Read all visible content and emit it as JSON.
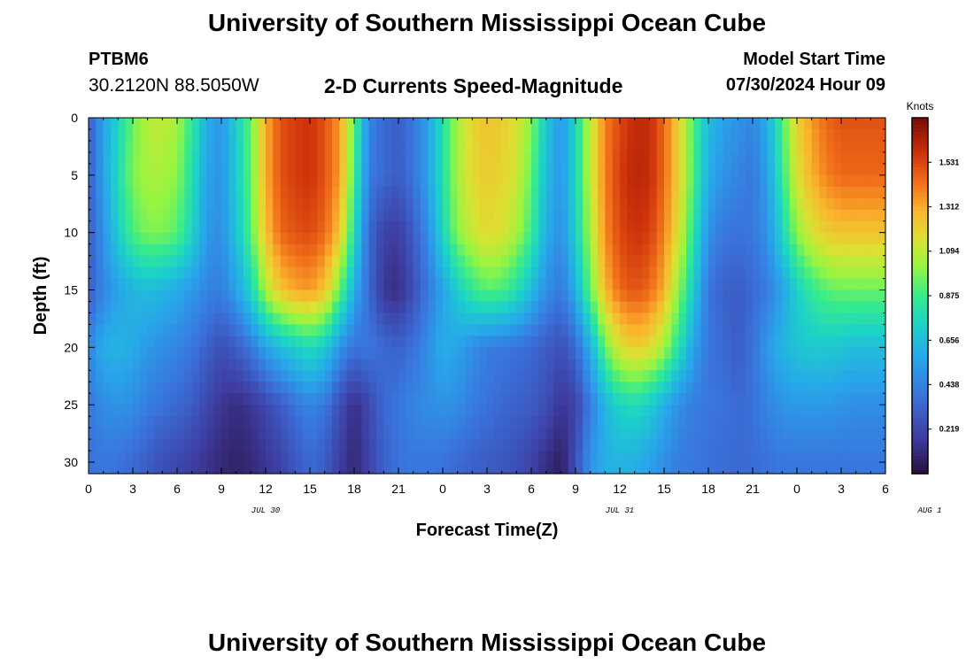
{
  "header": {
    "title": "University of Southern Mississippi Ocean Cube",
    "station": "PTBM6",
    "coordinates": "30.2120N  88.5050W",
    "product": "2-D Currents Speed-Magnitude",
    "model_start_label": "Model Start Time",
    "model_start_value": "07/30/2024 Hour 09"
  },
  "footer": {
    "title": "University of Southern Mississippi Ocean Cube"
  },
  "chart_data": {
    "type": "heatmap",
    "title": "2-D Currents Speed-Magnitude",
    "xlabel": "Forecast Time(Z)",
    "ylabel": "Depth (ft)",
    "x_tick_labels": [
      "0",
      "3",
      "6",
      "9",
      "12",
      "15",
      "18",
      "21",
      "0",
      "3",
      "6",
      "9",
      "12",
      "15",
      "18",
      "21",
      "0",
      "3",
      "6"
    ],
    "x_day_labels": [
      {
        "label": "JUL 30",
        "hour_index": 12
      },
      {
        "label": "JUL 31",
        "hour_index": 36
      },
      {
        "label": "AUG 1",
        "hour_index": 57
      }
    ],
    "x_range_hours": [
      0,
      54
    ],
    "y_tick_labels": [
      "0",
      "5",
      "10",
      "15",
      "20",
      "25",
      "30"
    ],
    "y_range_ft": [
      0,
      31
    ],
    "y_reversed": true,
    "colorbar": {
      "unit": "Knots",
      "range": [
        0,
        1.75
      ],
      "ticks": [
        "1.531",
        "1.312",
        "1.094",
        "0.875",
        "0.656",
        "0.438",
        "0.219"
      ],
      "tick_values": [
        1.531,
        1.312,
        1.094,
        0.875,
        0.656,
        0.438,
        0.219
      ]
    },
    "depths_ft": [
      0,
      5,
      10,
      15,
      20,
      25,
      30
    ],
    "times_hours": [
      0,
      1,
      2,
      3,
      4,
      5,
      6,
      7,
      8,
      9,
      10,
      11,
      12,
      13,
      14,
      15,
      16,
      17,
      18,
      19,
      20,
      21,
      22,
      23,
      24,
      25,
      26,
      27,
      28,
      29,
      30,
      31,
      32,
      33,
      34,
      35,
      36,
      37,
      38,
      39,
      40,
      41,
      42,
      43,
      44,
      45,
      46,
      47,
      48,
      49,
      50,
      51,
      52,
      53,
      54
    ],
    "speed_knots": [
      [
        0.3,
        0.55,
        0.75,
        0.95,
        1.08,
        1.1,
        1.05,
        0.85,
        0.6,
        0.5,
        0.72,
        0.95,
        1.3,
        1.5,
        1.55,
        1.58,
        1.5,
        1.35,
        0.95,
        0.45,
        0.35,
        0.3,
        0.4,
        0.55,
        0.8,
        1.05,
        1.2,
        1.25,
        1.22,
        1.15,
        1.0,
        0.7,
        0.5,
        0.75,
        1.1,
        1.4,
        1.52,
        1.6,
        1.6,
        1.45,
        1.2,
        0.9,
        0.65,
        0.55,
        0.5,
        0.45,
        0.6,
        0.9,
        1.2,
        1.35,
        1.45,
        1.5,
        1.5,
        1.5,
        1.5
      ],
      [
        0.3,
        0.55,
        0.78,
        0.98,
        1.05,
        1.05,
        1.0,
        0.8,
        0.55,
        0.5,
        0.7,
        0.95,
        1.3,
        1.5,
        1.55,
        1.58,
        1.5,
        1.35,
        0.9,
        0.42,
        0.35,
        0.3,
        0.4,
        0.55,
        0.8,
        1.05,
        1.18,
        1.22,
        1.2,
        1.12,
        0.95,
        0.65,
        0.5,
        0.75,
        1.1,
        1.4,
        1.55,
        1.62,
        1.6,
        1.45,
        1.2,
        0.9,
        0.6,
        0.5,
        0.45,
        0.4,
        0.55,
        0.85,
        1.15,
        1.3,
        1.4,
        1.45,
        1.45,
        1.45,
        1.45
      ],
      [
        0.3,
        0.5,
        0.72,
        0.9,
        0.98,
        0.98,
        0.92,
        0.75,
        0.52,
        0.48,
        0.68,
        0.92,
        1.25,
        1.45,
        1.5,
        1.52,
        1.45,
        1.25,
        0.8,
        0.35,
        0.2,
        0.18,
        0.3,
        0.48,
        0.75,
        1.0,
        1.12,
        1.18,
        1.15,
        1.05,
        0.88,
        0.6,
        0.48,
        0.72,
        1.05,
        1.38,
        1.52,
        1.58,
        1.55,
        1.4,
        1.15,
        0.82,
        0.5,
        0.4,
        0.38,
        0.4,
        0.5,
        0.75,
        1.0,
        1.15,
        1.22,
        1.25,
        1.25,
        1.25,
        1.25
      ],
      [
        0.3,
        0.45,
        0.55,
        0.62,
        0.65,
        0.62,
        0.58,
        0.52,
        0.45,
        0.42,
        0.55,
        0.75,
        1.05,
        1.25,
        1.32,
        1.35,
        1.25,
        0.95,
        0.6,
        0.35,
        0.15,
        0.12,
        0.25,
        0.4,
        0.55,
        0.72,
        0.85,
        0.92,
        0.9,
        0.8,
        0.65,
        0.48,
        0.4,
        0.6,
        0.95,
        1.28,
        1.45,
        1.5,
        1.45,
        1.3,
        1.0,
        0.7,
        0.4,
        0.32,
        0.3,
        0.35,
        0.42,
        0.55,
        0.72,
        0.85,
        0.92,
        0.95,
        0.95,
        0.95,
        0.95
      ],
      [
        0.45,
        0.6,
        0.62,
        0.58,
        0.52,
        0.48,
        0.45,
        0.4,
        0.32,
        0.25,
        0.3,
        0.4,
        0.55,
        0.65,
        0.72,
        0.78,
        0.7,
        0.5,
        0.38,
        0.4,
        0.35,
        0.32,
        0.38,
        0.48,
        0.6,
        0.55,
        0.48,
        0.42,
        0.4,
        0.38,
        0.35,
        0.3,
        0.25,
        0.35,
        0.6,
        0.95,
        1.15,
        1.22,
        1.18,
        1.05,
        0.8,
        0.55,
        0.4,
        0.35,
        0.3,
        0.38,
        0.52,
        0.62,
        0.68,
        0.7,
        0.7,
        0.68,
        0.65,
        0.65,
        0.65
      ],
      [
        0.4,
        0.48,
        0.5,
        0.48,
        0.42,
        0.38,
        0.35,
        0.3,
        0.22,
        0.15,
        0.12,
        0.15,
        0.22,
        0.3,
        0.38,
        0.45,
        0.4,
        0.25,
        0.12,
        0.22,
        0.35,
        0.4,
        0.45,
        0.48,
        0.5,
        0.48,
        0.42,
        0.38,
        0.35,
        0.32,
        0.3,
        0.25,
        0.15,
        0.2,
        0.42,
        0.62,
        0.75,
        0.78,
        0.72,
        0.6,
        0.48,
        0.42,
        0.4,
        0.38,
        0.35,
        0.38,
        0.45,
        0.5,
        0.52,
        0.52,
        0.52,
        0.5,
        0.48,
        0.48,
        0.48
      ],
      [
        0.38,
        0.4,
        0.38,
        0.35,
        0.3,
        0.25,
        0.22,
        0.18,
        0.14,
        0.1,
        0.08,
        0.1,
        0.15,
        0.2,
        0.28,
        0.35,
        0.3,
        0.18,
        0.1,
        0.2,
        0.32,
        0.38,
        0.4,
        0.4,
        0.38,
        0.35,
        0.32,
        0.3,
        0.28,
        0.25,
        0.2,
        0.12,
        0.06,
        0.25,
        0.5,
        0.6,
        0.62,
        0.6,
        0.55,
        0.48,
        0.42,
        0.4,
        0.38,
        0.36,
        0.35,
        0.36,
        0.38,
        0.4,
        0.4,
        0.4,
        0.4,
        0.4,
        0.4,
        0.4,
        0.4
      ]
    ]
  }
}
